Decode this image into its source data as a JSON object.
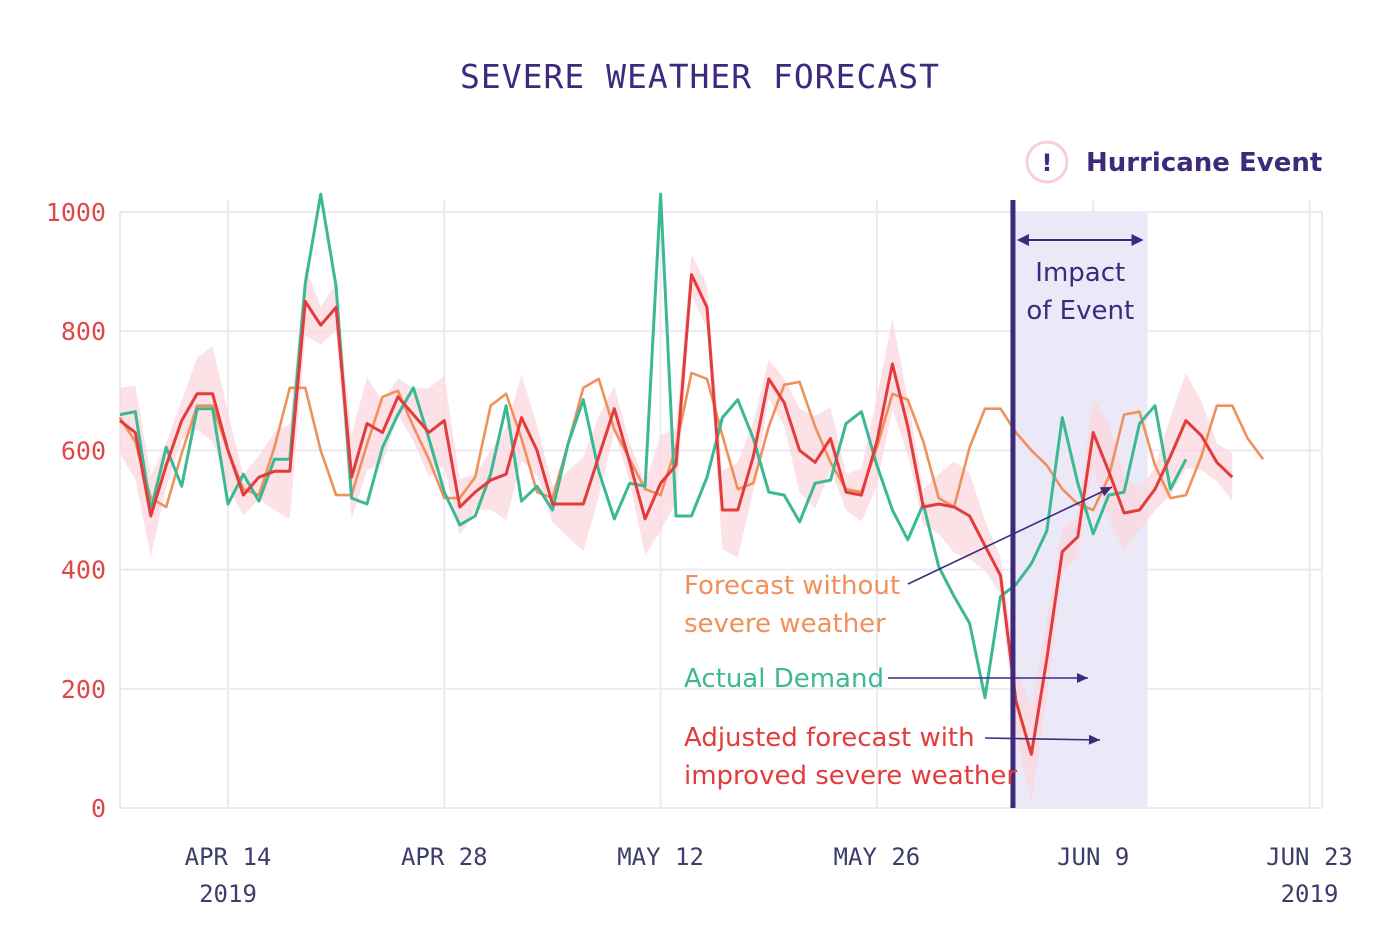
{
  "chart_data": {
    "type": "line",
    "title": "SEVERE WEATHER FORECAST",
    "xlabel": "",
    "ylabel": "",
    "ylim": [
      0,
      1000
    ],
    "yticks": [
      "0",
      "200",
      "400",
      "600",
      "800",
      "1000"
    ],
    "xticks": [
      {
        "label": "APR 14",
        "sub": "2019",
        "index": 5
      },
      {
        "label": "APR 28",
        "sub": "",
        "index": 19
      },
      {
        "label": "MAY 12",
        "sub": "",
        "index": 33
      },
      {
        "label": "MAY 26",
        "sub": "",
        "index": 47
      },
      {
        "label": "JUN 9",
        "sub": "",
        "index": 61
      },
      {
        "label": "JUN 23",
        "sub": "2019",
        "index": 75
      }
    ],
    "x_start_index": -2,
    "x_end_index": 76,
    "grid": true,
    "event": {
      "label": "Hurricane Event",
      "icon": "!",
      "start_index": 56,
      "end_index": 64,
      "impact_label": [
        "Impact",
        "of Event"
      ]
    },
    "series": [
      {
        "name": "Forecast without severe weather",
        "label_lines": [
          "Forecast without",
          "severe weather"
        ],
        "color": "#f0905a",
        "values": [
          655,
          615,
          520,
          505,
          595,
          675,
          675,
          600,
          535,
          525,
          605,
          705,
          705,
          600,
          525,
          525,
          610,
          690,
          700,
          640,
          585,
          520,
          520,
          555,
          675,
          695,
          620,
          530,
          520,
          610,
          705,
          720,
          635,
          585,
          535,
          525,
          605,
          730,
          720,
          625,
          535,
          545,
          640,
          710,
          715,
          640,
          580,
          535,
          530,
          605,
          695,
          685,
          615,
          520,
          505,
          605,
          670,
          670,
          630,
          600,
          575,
          535,
          510,
          500,
          555,
          660,
          665,
          575,
          520,
          525,
          590,
          675,
          675,
          620,
          585
        ]
      },
      {
        "name": "Actual Demand",
        "label_lines": [
          "Actual Demand"
        ],
        "color": "#3bb894",
        "values": [
          660,
          665,
          500,
          605,
          540,
          670,
          670,
          510,
          560,
          515,
          585,
          585,
          880,
          1030,
          875,
          520,
          510,
          605,
          660,
          705,
          620,
          530,
          475,
          490,
          560,
          675,
          515,
          540,
          500,
          610,
          685,
          565,
          485,
          545,
          540,
          1030,
          490,
          490,
          555,
          655,
          685,
          620,
          530,
          525,
          480,
          545,
          550,
          645,
          665,
          575,
          500,
          450,
          510,
          405,
          355,
          310,
          185,
          355,
          375,
          410,
          465,
          655,
          545,
          460,
          525,
          530,
          645,
          675,
          535,
          585
        ]
      },
      {
        "name": "Adjusted forecast with improved severe weather",
        "label_lines": [
          "Adjusted forecast with",
          "improved severe weather"
        ],
        "color": "#e23c3c",
        "values": [
          650,
          630,
          490,
          575,
          650,
          695,
          695,
          600,
          525,
          555,
          565,
          565,
          850,
          810,
          840,
          555,
          645,
          630,
          690,
          660,
          630,
          650,
          505,
          530,
          550,
          560,
          655,
          600,
          510,
          510,
          510,
          590,
          670,
          580,
          485,
          545,
          575,
          895,
          840,
          500,
          500,
          590,
          720,
          680,
          600,
          580,
          620,
          530,
          525,
          615,
          745,
          640,
          505,
          510,
          505,
          490,
          440,
          390,
          180,
          90,
          250,
          430,
          455,
          630,
          565,
          495,
          500,
          535,
          590,
          650,
          625,
          580,
          555
        ]
      }
    ]
  }
}
